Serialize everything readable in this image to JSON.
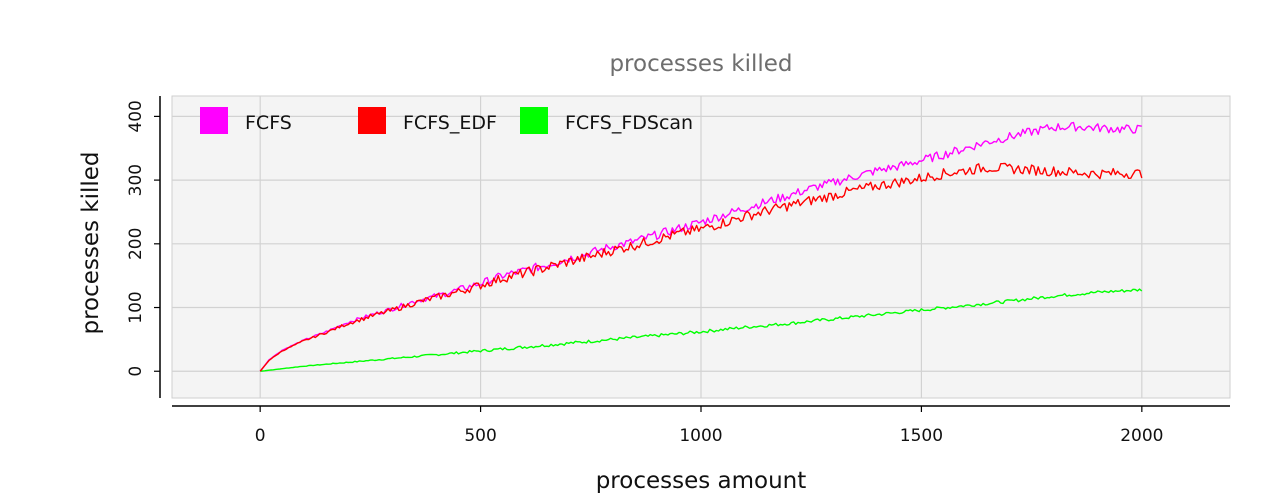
{
  "chart_data": {
    "type": "line",
    "title": "processes killed",
    "xlabel": "processes amount",
    "ylabel": "processes killed",
    "xlim": [
      -200,
      2200
    ],
    "ylim": [
      -42,
      432
    ],
    "xticks": [
      0,
      500,
      1000,
      1500,
      2000
    ],
    "yticks": [
      0,
      100,
      200,
      300,
      400
    ],
    "grid": true,
    "legend_position": "top-left",
    "series": [
      {
        "name": "FCFS",
        "color": "#ff00ff",
        "x": [
          0,
          20,
          50,
          100,
          150,
          200,
          250,
          300,
          350,
          400,
          450,
          500,
          550,
          600,
          650,
          700,
          750,
          800,
          850,
          900,
          950,
          1000,
          1050,
          1100,
          1150,
          1200,
          1250,
          1300,
          1350,
          1400,
          1450,
          1500,
          1550,
          1600,
          1650,
          1700,
          1750,
          1800,
          1850,
          1900,
          1950,
          2000
        ],
        "y": [
          0,
          18,
          33,
          49,
          62,
          77,
          88,
          98,
          110,
          118,
          128,
          138,
          150,
          158,
          167,
          177,
          186,
          196,
          204,
          214,
          224,
          234,
          245,
          256,
          266,
          276,
          287,
          296,
          306,
          315,
          322,
          331,
          340,
          350,
          360,
          368,
          376,
          383,
          384,
          382,
          380,
          380
        ]
      },
      {
        "name": "FCFS_EDF",
        "color": "#ff0000",
        "x": [
          0,
          20,
          50,
          100,
          150,
          200,
          250,
          300,
          350,
          400,
          450,
          500,
          550,
          600,
          650,
          700,
          750,
          800,
          850,
          900,
          950,
          1000,
          1050,
          1100,
          1150,
          1200,
          1250,
          1300,
          1350,
          1400,
          1450,
          1500,
          1550,
          1600,
          1650,
          1700,
          1750,
          1800,
          1850,
          1900,
          1950,
          2000
        ],
        "y": [
          0,
          17,
          32,
          48,
          61,
          75,
          86,
          96,
          107,
          116,
          125,
          135,
          146,
          154,
          163,
          172,
          180,
          190,
          198,
          207,
          216,
          223,
          233,
          243,
          252,
          260,
          268,
          276,
          284,
          291,
          297,
          303,
          310,
          315,
          320,
          318,
          316,
          314,
          312,
          310,
          311,
          310
        ]
      },
      {
        "name": "FCFS_FDScan",
        "color": "#00ff00",
        "x": [
          0,
          100,
          200,
          300,
          400,
          500,
          600,
          700,
          800,
          900,
          1000,
          1100,
          1200,
          1300,
          1400,
          1500,
          1600,
          1700,
          1800,
          1900,
          2000
        ],
        "y": [
          0,
          8,
          14,
          20,
          26,
          32,
          38,
          44,
          50,
          56,
          62,
          69,
          75,
          82,
          89,
          96,
          103,
          110,
          118,
          124,
          128
        ]
      }
    ]
  }
}
